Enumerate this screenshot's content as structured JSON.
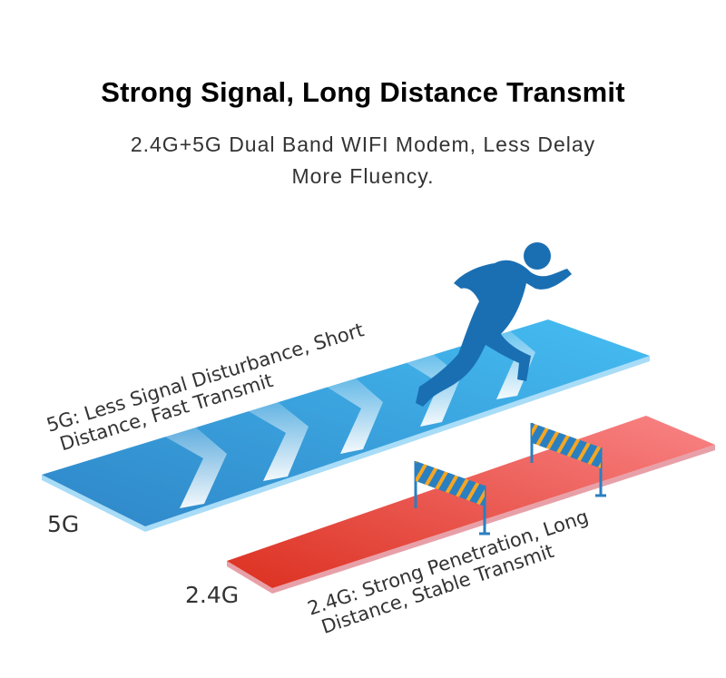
{
  "header": {
    "title": "Strong Signal, Long Distance Transmit",
    "subtitle_line1": "2.4G+5G Dual Band WIFI Modem, Less Delay",
    "subtitle_line2": "More Fluency."
  },
  "tracks": {
    "band_5g": {
      "label": "5G",
      "desc_line1": "5G: Less Signal Disturbance, Short",
      "desc_line2": "Distance, Fast Transmit",
      "color": "#3ba3e0"
    },
    "band_24g": {
      "label": "2.4G",
      "desc_line1": "2.4G: Strong Penetration, Long",
      "desc_line2": "Distance, Stable Transmit",
      "color": "#e8443a"
    }
  },
  "icons": [
    "runner-icon",
    "hurdle-icon",
    "chevron-arrow-icon"
  ],
  "colors": {
    "runner": "#1a6fb3",
    "hurdle_stripe": "#f5a623",
    "hurdle_body": "#2a7fc0"
  }
}
